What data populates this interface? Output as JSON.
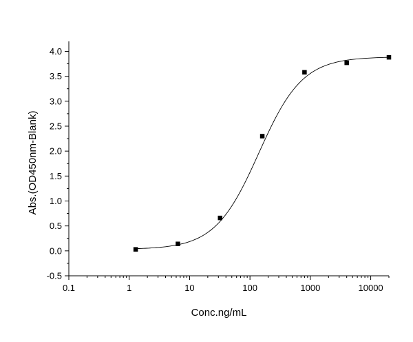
{
  "chart_data": {
    "type": "scatter",
    "xlabel": "Conc.ng/mL",
    "ylabel": "Abs.(OD450nm-Blank)",
    "xscale": "log",
    "xlim": [
      0.1,
      20000
    ],
    "ylim": [
      -0.5,
      4.2
    ],
    "grid": false,
    "legend": "none",
    "x_tick_labels": [
      "0.1",
      "1",
      "10",
      "100",
      "1000",
      "10000"
    ],
    "y_tick_labels": [
      "-0.5",
      "0.0",
      "0.5",
      "1.0",
      "1.5",
      "2.0",
      "2.5",
      "3.0",
      "3.5",
      "4.0"
    ],
    "series": [
      {
        "style": "markers",
        "x": [
          1.28,
          6.4,
          32,
          160,
          800,
          4000,
          20000
        ],
        "y": [
          0.03,
          0.14,
          0.66,
          2.3,
          3.58,
          3.77,
          3.88
        ]
      }
    ],
    "fit_curve": {
      "model": "4PL",
      "bottom": 0.03,
      "top": 3.89,
      "ec50": 140,
      "hill": 1.2
    },
    "colors": {
      "marker": "#000000",
      "line": "#000000",
      "axis": "#000000"
    }
  }
}
